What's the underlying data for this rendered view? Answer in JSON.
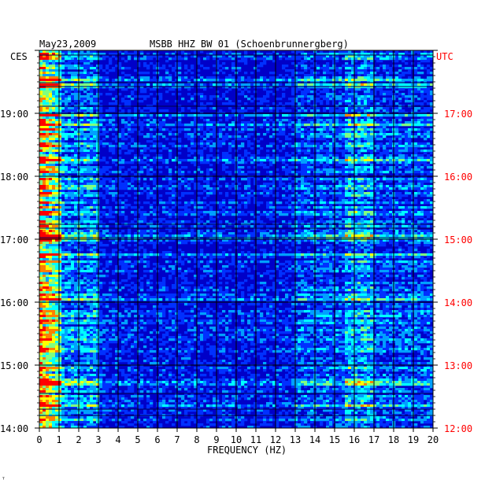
{
  "header": {
    "date": "May23,2009",
    "station": "MSBB HHZ BW 01 (Schoenbrunnergberg)",
    "left_zone": "CES",
    "right_zone": "UTC"
  },
  "footer_mark": "ᵀ",
  "chart_data": {
    "type": "heatmap",
    "title": "MSBB HHZ BW 01 (Schoenbrunnergberg)",
    "subtitle": "May23,2009",
    "xlabel": "FREQUENCY (HZ)",
    "ylabel_left": "CES",
    "ylabel_right": "UTC",
    "xlim": [
      0,
      20
    ],
    "x_ticks": [
      "0",
      "1",
      "2",
      "3",
      "4",
      "5",
      "6",
      "7",
      "8",
      "9",
      "10",
      "11",
      "12",
      "13",
      "14",
      "15",
      "16",
      "17",
      "18",
      "19",
      "20"
    ],
    "y_ticks_left": [
      "19:00",
      "18:00",
      "17:00",
      "16:00",
      "15:00",
      "14:00"
    ],
    "y_ticks_right": [
      "17:00",
      "16:00",
      "15:00",
      "14:00",
      "13:00",
      "12:00"
    ],
    "time_range_left": [
      "14:00",
      "20:00"
    ],
    "grid": true,
    "colormap": [
      "#00007a",
      "#0000c8",
      "#0030ff",
      "#00a0ff",
      "#00ffff",
      "#80ff80",
      "#ffff00",
      "#ff8000",
      "#ff0000"
    ],
    "energy_bands": [
      {
        "freq_range_hz": [
          0,
          1
        ],
        "level": "high"
      },
      {
        "freq_range_hz": [
          1,
          3
        ],
        "level": "medium"
      },
      {
        "freq_range_hz": [
          13,
          20
        ],
        "level": "medium"
      },
      {
        "freq_range_hz": [
          15.5,
          17
        ],
        "level": "high"
      }
    ]
  }
}
